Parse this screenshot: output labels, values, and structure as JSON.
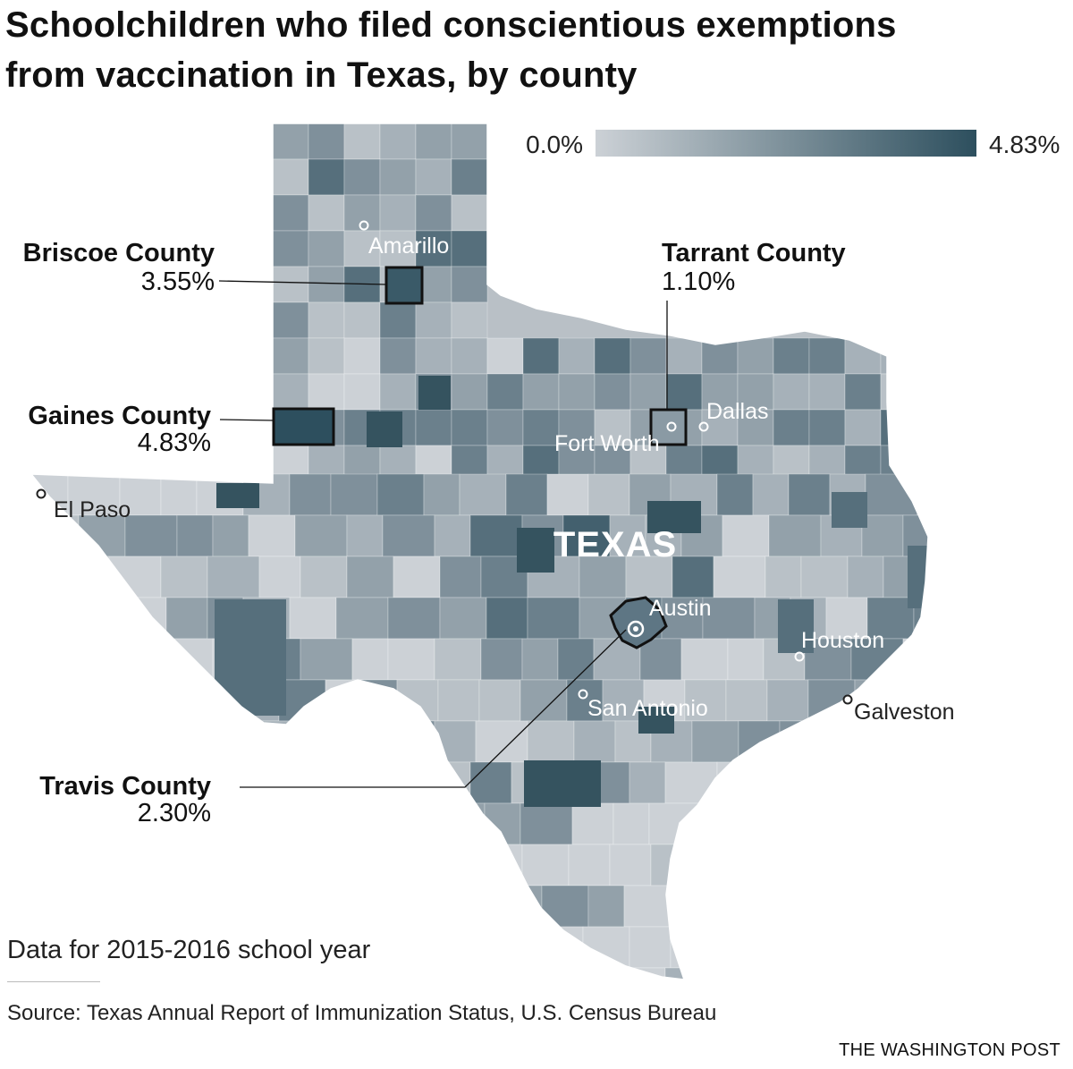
{
  "title": {
    "line1": "Schoolchildren who filed conscientious exemptions",
    "line2": "from vaccination in Texas, by county"
  },
  "legend": {
    "min_label": "0.0%",
    "max_label": "4.83%",
    "color_min": "#ccd1d6",
    "color_max": "#2d4f5e"
  },
  "state_label": "TEXAS",
  "callouts": [
    {
      "name": "Briscoe County",
      "value": "3.55%"
    },
    {
      "name": "Tarrant County",
      "value": "1.10%"
    },
    {
      "name": "Gaines County",
      "value": "4.83%"
    },
    {
      "name": "Travis County",
      "value": "2.30%"
    }
  ],
  "cities": {
    "amarillo": "Amarillo",
    "dallas": "Dallas",
    "fort_worth": "Fort Worth",
    "el_paso": "El Paso",
    "austin": "Austin",
    "houston": "Houston",
    "san_antonio": "San Antonio",
    "galveston": "Galveston"
  },
  "note": "Data for 2015-2016 school year",
  "source": "Source: Texas Annual Report of Immunization Status, U.S. Census Bureau",
  "credit": "THE WASHINGTON POST"
}
